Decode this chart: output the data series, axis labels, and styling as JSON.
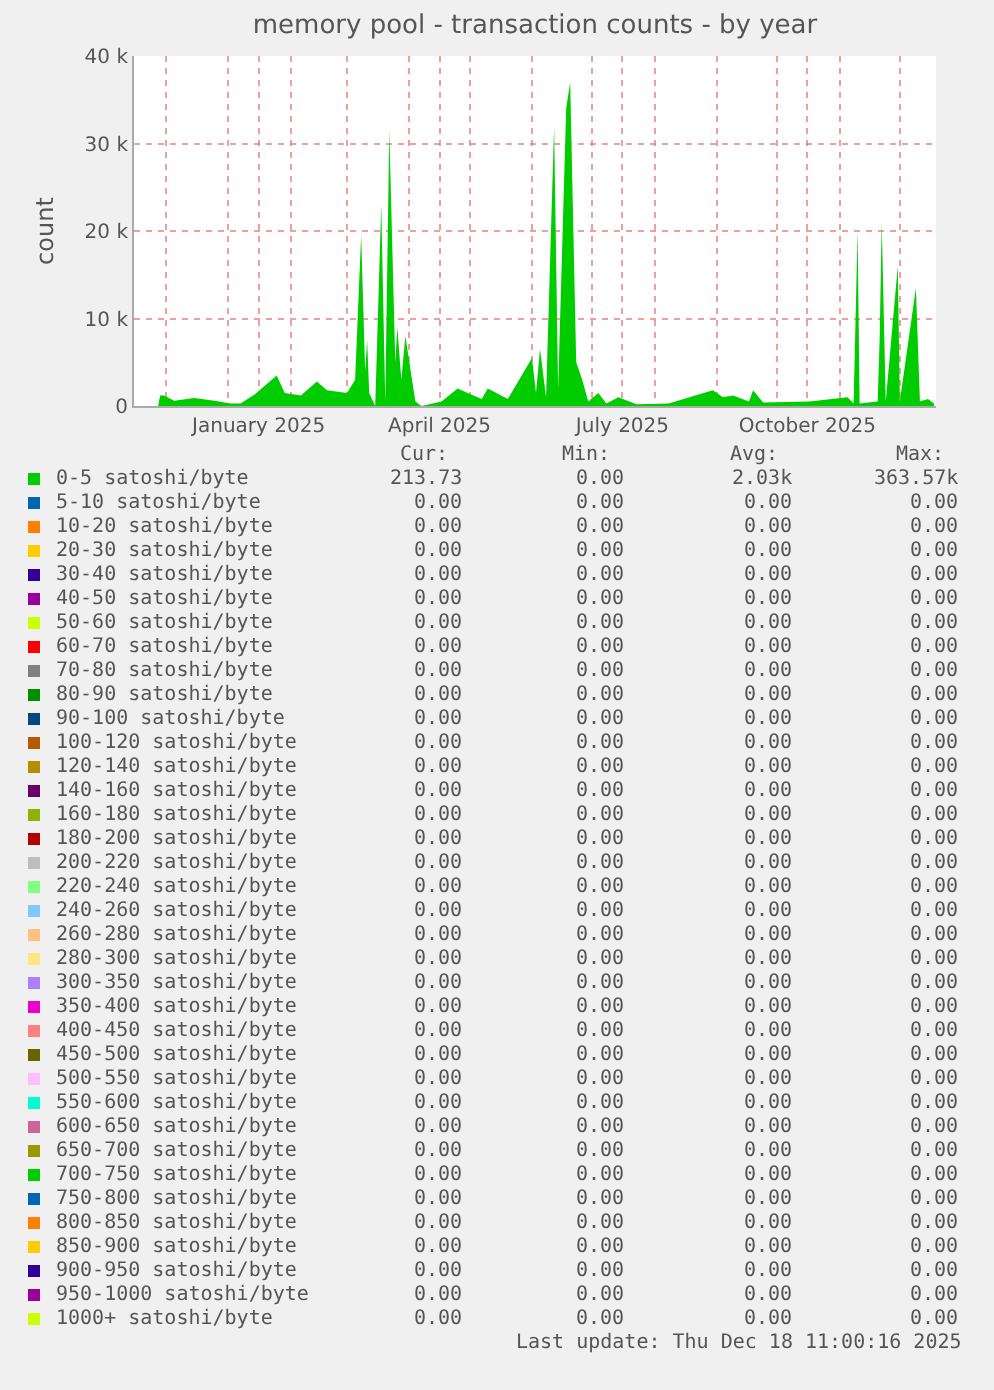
{
  "chart_data": {
    "type": "area",
    "title": "memory pool - transaction counts - by year",
    "ylabel": "count",
    "xlim": [
      "2024-11-15",
      "2025-12-19"
    ],
    "ylim": [
      0,
      40000
    ],
    "xticks": [
      {
        "value": "2024-12-01",
        "label": null
      },
      {
        "value": "2025-01-01",
        "label": null
      },
      {
        "value": "2025-01-16",
        "label": "January 2025"
      },
      {
        "value": "2025-02-01",
        "label": null
      },
      {
        "value": "2025-03-01",
        "label": null
      },
      {
        "value": "2025-04-01",
        "label": null
      },
      {
        "value": "2025-04-16",
        "label": "April 2025"
      },
      {
        "value": "2025-05-01",
        "label": null
      },
      {
        "value": "2025-06-01",
        "label": null
      },
      {
        "value": "2025-07-01",
        "label": null
      },
      {
        "value": "2025-07-16",
        "label": "July 2025"
      },
      {
        "value": "2025-08-01",
        "label": null
      },
      {
        "value": "2025-09-01",
        "label": null
      },
      {
        "value": "2025-10-01",
        "label": null
      },
      {
        "value": "2025-10-16",
        "label": "October 2025"
      },
      {
        "value": "2025-11-01",
        "label": null
      },
      {
        "value": "2025-12-01",
        "label": null
      }
    ],
    "yticks": [
      0,
      {
        "value": 10000,
        "label": "10 k"
      },
      {
        "value": 20000,
        "label": "20 k"
      },
      {
        "value": 30000,
        "label": "30 k"
      },
      {
        "value": 40000,
        "label": "40 k"
      }
    ],
    "grid": true,
    "legend": "bottom",
    "series": [
      {
        "name": "0-5 satoshi/byte",
        "color": "#00cc00",
        "x": [
          "2024-11-15",
          "2024-11-27",
          "2024-11-28",
          "2024-11-30",
          "2024-12-05",
          "2024-12-15",
          "2024-12-25",
          "2025-01-02",
          "2025-01-07",
          "2025-01-14",
          "2025-01-25",
          "2025-01-29",
          "2025-02-06",
          "2025-02-14",
          "2025-02-19",
          "2025-03-01",
          "2025-03-05",
          "2025-03-08",
          "2025-03-10",
          "2025-03-11",
          "2025-03-12",
          "2025-03-15",
          "2025-03-18",
          "2025-03-20",
          "2025-03-22",
          "2025-03-25",
          "2025-03-26",
          "2025-03-28",
          "2025-03-30",
          "2025-04-02",
          "2025-04-04",
          "2025-04-07",
          "2025-04-17",
          "2025-04-25",
          "2025-04-30",
          "2025-05-07",
          "2025-05-10",
          "2025-05-20",
          "2025-06-01",
          "2025-06-03",
          "2025-06-05",
          "2025-06-08",
          "2025-06-12",
          "2025-06-14",
          "2025-06-18",
          "2025-06-20",
          "2025-06-23",
          "2025-06-26",
          "2025-06-29",
          "2025-07-04",
          "2025-07-08",
          "2025-07-14",
          "2025-07-23",
          "2025-08-08",
          "2025-08-30",
          "2025-09-04",
          "2025-09-09",
          "2025-09-17",
          "2025-09-19",
          "2025-09-24",
          "2025-10-17",
          "2025-11-05",
          "2025-11-08",
          "2025-11-10",
          "2025-11-11",
          "2025-11-20",
          "2025-11-21",
          "2025-11-22",
          "2025-11-24",
          "2025-11-30",
          "2025-12-01",
          "2025-12-09",
          "2025-12-11",
          "2025-12-15",
          "2025-12-18"
        ],
        "values": [
          0,
          0,
          1200,
          1200,
          600,
          900,
          600,
          300,
          300,
          1300,
          3500,
          1500,
          1200,
          2800,
          1800,
          1500,
          3000,
          19500,
          4000,
          7500,
          1500,
          0,
          23000,
          500,
          31500,
          5000,
          9000,
          3000,
          8000,
          3500,
          500,
          0,
          500,
          2000,
          1500,
          800,
          2000,
          800,
          5500,
          1500,
          6500,
          1000,
          32000,
          2000,
          34000,
          37000,
          5000,
          3000,
          500,
          1500,
          300,
          1000,
          200,
          300,
          1800,
          1000,
          1200,
          500,
          1800,
          400,
          500,
          1000,
          300,
          20000,
          300,
          500,
          8000,
          21000,
          500,
          16000,
          500,
          13500,
          500,
          800,
          300
        ]
      },
      {
        "name": "5-10 satoshi/byte",
        "color": "#0066b3",
        "values": [
          null
        ]
      },
      {
        "name": "10-20 satoshi/byte",
        "color": "#ff8000",
        "values": [
          null
        ]
      },
      {
        "name": "20-30 satoshi/byte",
        "color": "#ffcc00",
        "values": [
          null
        ]
      },
      {
        "name": "30-40 satoshi/byte",
        "color": "#330099",
        "values": [
          null
        ]
      },
      {
        "name": "40-50 satoshi/byte",
        "color": "#990099",
        "values": [
          null
        ]
      },
      {
        "name": "50-60 satoshi/byte",
        "color": "#ccff00",
        "values": [
          null
        ]
      },
      {
        "name": "60-70 satoshi/byte",
        "color": "#ff0000",
        "values": [
          null
        ]
      },
      {
        "name": "70-80 satoshi/byte",
        "color": "#808080",
        "values": [
          null
        ]
      },
      {
        "name": "80-90 satoshi/byte",
        "color": "#008f00",
        "values": [
          null
        ]
      },
      {
        "name": "90-100 satoshi/byte",
        "color": "#00487d",
        "values": [
          null
        ]
      },
      {
        "name": "100-120 satoshi/byte",
        "color": "#b35a00",
        "values": [
          null
        ]
      },
      {
        "name": "120-140 satoshi/byte",
        "color": "#b38f00",
        "values": [
          null
        ]
      },
      {
        "name": "140-160 satoshi/byte",
        "color": "#6b006b",
        "values": [
          null
        ]
      },
      {
        "name": "160-180 satoshi/byte",
        "color": "#8fb300",
        "values": [
          null
        ]
      },
      {
        "name": "180-200 satoshi/byte",
        "color": "#b30000",
        "values": [
          null
        ]
      },
      {
        "name": "200-220 satoshi/byte",
        "color": "#bebebe",
        "values": [
          null
        ]
      },
      {
        "name": "220-240 satoshi/byte",
        "color": "#80ff80",
        "values": [
          null
        ]
      },
      {
        "name": "240-260 satoshi/byte",
        "color": "#80c9ff",
        "values": [
          null
        ]
      },
      {
        "name": "260-280 satoshi/byte",
        "color": "#ffc080",
        "values": [
          null
        ]
      },
      {
        "name": "280-300 satoshi/byte",
        "color": "#ffe680",
        "values": [
          null
        ]
      },
      {
        "name": "300-350 satoshi/byte",
        "color": "#aa80ff",
        "values": [
          null
        ]
      },
      {
        "name": "350-400 satoshi/byte",
        "color": "#ee00cc",
        "values": [
          null
        ]
      },
      {
        "name": "400-450 satoshi/byte",
        "color": "#ff8080",
        "values": [
          null
        ]
      },
      {
        "name": "450-500 satoshi/byte",
        "color": "#666600",
        "values": [
          null
        ]
      },
      {
        "name": "500-550 satoshi/byte",
        "color": "#ffbfff",
        "values": [
          null
        ]
      },
      {
        "name": "550-600 satoshi/byte",
        "color": "#00ffcc",
        "values": [
          null
        ]
      },
      {
        "name": "600-650 satoshi/byte",
        "color": "#cc6699",
        "values": [
          null
        ]
      },
      {
        "name": "650-700 satoshi/byte",
        "color": "#999900",
        "values": [
          null
        ]
      },
      {
        "name": "700-750 satoshi/byte",
        "color": "#00cc00",
        "values": [
          null
        ]
      },
      {
        "name": "750-800 satoshi/byte",
        "color": "#0066b3",
        "values": [
          null
        ]
      },
      {
        "name": "800-850 satoshi/byte",
        "color": "#ff8000",
        "values": [
          null
        ]
      },
      {
        "name": "850-900 satoshi/byte",
        "color": "#ffcc00",
        "values": [
          null
        ]
      },
      {
        "name": "900-950 satoshi/byte",
        "color": "#330099",
        "values": [
          null
        ]
      },
      {
        "name": "950-1000 satoshi/byte",
        "color": "#990099",
        "values": [
          null
        ]
      },
      {
        "name": "1000+ satoshi/byte",
        "color": "#ccff00",
        "values": [
          null
        ]
      }
    ],
    "annotations": [
      "Cur:",
      "Min:",
      "Avg:",
      "Max:",
      "213.73",
      "0.00",
      "2.03k",
      "363.57k",
      "0.00",
      "0.00",
      "0.00",
      "0.00",
      "0.00",
      "0.00",
      "0.00",
      "0.00",
      "0.00",
      "0.00",
      "0.00",
      "0.00",
      "0.00",
      "0.00",
      "0.00",
      "0.00",
      "0.00",
      "0.00",
      "0.00",
      "0.00",
      "0.00",
      "0.00",
      "0.00",
      "0.00",
      "0.00",
      "0.00",
      "0.00",
      "0.00",
      "0.00",
      "0.00",
      "0.00",
      "0.00",
      "0.00",
      "0.00",
      "0.00",
      "0.00",
      "0.00",
      "0.00",
      "0.00",
      "0.00",
      "0.00",
      "0.00",
      "0.00",
      "0.00",
      "0.00",
      "0.00",
      "0.00",
      "0.00",
      "0.00",
      "0.00",
      "0.00",
      "0.00",
      "0.00",
      "0.00",
      "0.00",
      "0.00",
      "0.00",
      "0.00",
      "0.00",
      "0.00",
      "0.00",
      "0.00",
      "0.00",
      "0.00",
      "0.00",
      "0.00",
      "0.00",
      "0.00",
      "0.00",
      "0.00",
      "0.00",
      "0.00",
      "0.00",
      "0.00",
      "0.00",
      "0.00",
      "0.00",
      "0.00",
      "0.00",
      "0.00",
      "0.00",
      "0.00",
      "0.00",
      "0.00",
      "0.00",
      "0.00",
      "0.00",
      "0.00",
      "0.00",
      "0.00",
      "0.00",
      "0.00",
      "0.00",
      "0.00",
      "0.00",
      "0.00",
      "0.00",
      "0.00",
      "0.00",
      "0.00",
      "0.00",
      "0.00",
      "0.00",
      "0.00",
      "0.00",
      "0.00",
      "0.00",
      "0.00",
      "0.00",
      "0.00",
      "0.00",
      "0.00",
      "0.00",
      "0.00",
      "0.00",
      "0.00",
      "0.00",
      "0.00",
      "0.00",
      "0.00",
      "0.00",
      "0.00",
      "0.00",
      "0.00",
      "0.00",
      "0.00",
      "0.00",
      "0.00",
      "0.00",
      "0.00",
      "0.00",
      "0.00",
      "0.00",
      "0.00",
      "0.00",
      "0.00",
      "0.00",
      "0.00",
      "0.00",
      "0.00",
      "Last update: Thu Dec 18 11:00:16 2025"
    ]
  }
}
